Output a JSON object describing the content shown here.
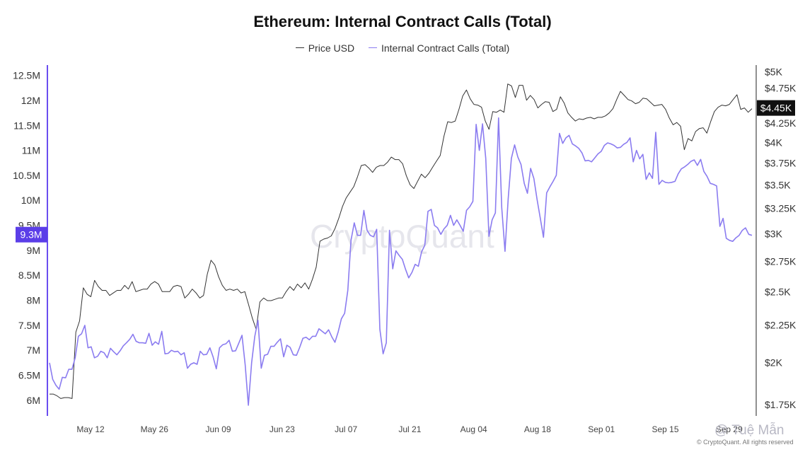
{
  "chart_data": {
    "type": "line",
    "title": "Ethereum: Internal Contract Calls (Total)",
    "legend_position": "top-center",
    "grid": false,
    "x_tick_labels": [
      "May 12",
      "May 26",
      "Jun 09",
      "Jun 23",
      "Jul 07",
      "Jul 21",
      "Aug 04",
      "Aug 18",
      "Sep 01",
      "Sep 15",
      "Sep 29"
    ],
    "x_range": [
      "2025-05-03",
      "2025-10-04"
    ],
    "left_axis": {
      "ticks": [
        "6M",
        "6.5M",
        "7M",
        "7.5M",
        "8M",
        "8.5M",
        "9M",
        "9.5M",
        "10M",
        "10.5M",
        "11M",
        "11.5M",
        "12M",
        "12.5M"
      ],
      "range": [
        5.8,
        12.65
      ],
      "unit": "millions",
      "current_label": "9.3M",
      "current_color": "#5b3ee8"
    },
    "right_axis": {
      "ticks": [
        "$1.75K",
        "$2K",
        "$2.25K",
        "$2.5K",
        "$2.75K",
        "$3K",
        "$3.25K",
        "$3.5K",
        "$3.75K",
        "$4K",
        "$4.25K",
        "$4.5K",
        "$4.75K",
        "$5K"
      ],
      "tick_values": [
        1750,
        2000,
        2250,
        2500,
        2750,
        3000,
        3250,
        3500,
        3750,
        4000,
        4250,
        4500,
        4750,
        5000
      ],
      "scale": "log",
      "range": [
        1720,
        5060
      ],
      "current_label": "$4.45K",
      "current_color": "#111111"
    },
    "series": [
      {
        "name": "Price USD",
        "axis": "right",
        "color": "#333333",
        "values": [
          1810,
          1810,
          1800,
          1785,
          1790,
          1790,
          1785,
          2200,
          2280,
          2530,
          2480,
          2460,
          2590,
          2540,
          2510,
          2510,
          2470,
          2490,
          2510,
          2510,
          2550,
          2520,
          2580,
          2500,
          2510,
          2520,
          2520,
          2560,
          2580,
          2560,
          2500,
          2500,
          2500,
          2540,
          2550,
          2540,
          2450,
          2480,
          2520,
          2490,
          2450,
          2470,
          2640,
          2760,
          2720,
          2620,
          2550,
          2510,
          2520,
          2510,
          2520,
          2490,
          2500,
          2400,
          2300,
          2220,
          2420,
          2450,
          2430,
          2430,
          2440,
          2450,
          2450,
          2500,
          2540,
          2510,
          2560,
          2530,
          2570,
          2520,
          2600,
          2700,
          2930,
          2950,
          2960,
          2980,
          3050,
          3150,
          3270,
          3360,
          3420,
          3480,
          3590,
          3720,
          3730,
          3690,
          3640,
          3700,
          3720,
          3720,
          3760,
          3820,
          3790,
          3790,
          3740,
          3600,
          3500,
          3460,
          3540,
          3620,
          3580,
          3630,
          3700,
          3770,
          3840,
          4080,
          4270,
          4260,
          4280,
          4440,
          4630,
          4720,
          4590,
          4510,
          4500,
          4470,
          4280,
          4170,
          4410,
          4400,
          4430,
          4400,
          4810,
          4780,
          4610,
          4790,
          4790,
          4570,
          4640,
          4580,
          4460,
          4510,
          4550,
          4540,
          4410,
          4440,
          4620,
          4530,
          4390,
          4330,
          4280,
          4310,
          4300,
          4320,
          4330,
          4310,
          4330,
          4330,
          4350,
          4390,
          4450,
          4580,
          4700,
          4640,
          4580,
          4560,
          4520,
          4540,
          4600,
          4590,
          4540,
          4490,
          4500,
          4510,
          4440,
          4320,
          4230,
          4260,
          4210,
          3910,
          4050,
          4020,
          4140,
          4180,
          4190,
          4120,
          4270,
          4410,
          4470,
          4500,
          4490,
          4510,
          4580,
          4650,
          4440,
          4460,
          4400,
          4450
        ]
      },
      {
        "name": "Internal Contract Calls (Total)",
        "axis": "left",
        "color": "#8b7cf0",
        "values": [
          6.75,
          6.42,
          6.3,
          6.22,
          6.46,
          6.45,
          6.62,
          6.62,
          6.85,
          7.28,
          7.33,
          7.5,
          7.05,
          7.07,
          6.85,
          6.88,
          6.98,
          6.95,
          6.85,
          7.04,
          6.97,
          6.91,
          6.99,
          7.09,
          7.15,
          7.22,
          7.32,
          7.18,
          7.15,
          7.15,
          7.14,
          7.34,
          7.1,
          7.17,
          7.12,
          7.38,
          6.93,
          6.94,
          7.0,
          6.97,
          6.98,
          6.91,
          6.95,
          6.64,
          6.72,
          6.75,
          6.72,
          6.98,
          6.91,
          6.92,
          7.05,
          6.87,
          6.63,
          7.05,
          7.11,
          7.13,
          7.2,
          6.98,
          6.99,
          7.14,
          7.3,
          6.71,
          5.9,
          6.75,
          7.28,
          7.6,
          6.64,
          6.9,
          6.92,
          7.08,
          7.08,
          7.16,
          7.23,
          6.87,
          7.1,
          7.06,
          6.91,
          6.9,
          7.06,
          7.24,
          7.26,
          7.21,
          7.28,
          7.28,
          7.43,
          7.38,
          7.33,
          7.41,
          7.27,
          7.16,
          7.37,
          7.63,
          7.74,
          8.2,
          9.2,
          9.55,
          9.3,
          9.3,
          9.8,
          9.4,
          9.3,
          9.27,
          9.42,
          7.42,
          6.93,
          7.15,
          9.4,
          8.63,
          8.99,
          8.9,
          8.82,
          8.62,
          8.45,
          8.56,
          8.72,
          8.68,
          8.97,
          9.1,
          9.78,
          9.82,
          9.5,
          9.45,
          9.32,
          9.43,
          9.5,
          9.7,
          9.5,
          9.61,
          9.5,
          9.38,
          9.8,
          9.87,
          9.98,
          11.52,
          11.0,
          11.53,
          10.84,
          9.28,
          9.61,
          9.75,
          11.65,
          9.85,
          8.98,
          10.03,
          10.84,
          11.11,
          10.87,
          10.72,
          10.34,
          10.14,
          10.64,
          10.44,
          10.02,
          9.65,
          9.26,
          10.15,
          10.27,
          10.38,
          10.5,
          11.34,
          11.14,
          11.25,
          11.3,
          11.13,
          11.09,
          11.04,
          10.95,
          10.79,
          10.8,
          10.77,
          10.85,
          10.93,
          10.98,
          11.1,
          11.15,
          11.13,
          11.1,
          11.05,
          11.06,
          11.12,
          11.16,
          11.25,
          10.77,
          11.0,
          10.83,
          10.92,
          10.42,
          10.55,
          10.44,
          11.36,
          10.32,
          10.4,
          10.36,
          10.35,
          10.36,
          10.38,
          10.53,
          10.63,
          10.67,
          10.72,
          10.78,
          10.81,
          10.7,
          10.82,
          10.58,
          10.48,
          10.34,
          10.32,
          10.29,
          9.48,
          9.64,
          9.24,
          9.2,
          9.18,
          9.25,
          9.3,
          9.4,
          9.45,
          9.32,
          9.3
        ]
      }
    ]
  },
  "watermark": "CryptoQuant",
  "credit": "© CryptoQuant. All rights reserved",
  "user_mark": "@ Tuệ Mẫn"
}
